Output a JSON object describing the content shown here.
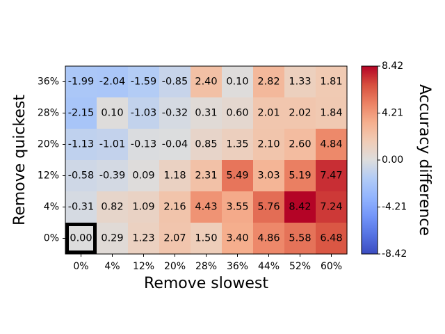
{
  "chart_data": {
    "type": "heatmap",
    "title": "",
    "xlabel": "Remove slowest",
    "ylabel": "Remove quickest",
    "colorbar_label": "Accuracy difference",
    "x_categories": [
      "0%",
      "4%",
      "12%",
      "20%",
      "28%",
      "36%",
      "44%",
      "52%",
      "60%"
    ],
    "y_categories": [
      "36%",
      "28%",
      "20%",
      "12%",
      "4%",
      "0%"
    ],
    "values": [
      [
        -1.99,
        -2.04,
        -1.59,
        -0.85,
        2.4,
        0.1,
        2.82,
        1.33,
        1.81
      ],
      [
        -2.15,
        0.1,
        -1.03,
        -0.32,
        0.31,
        0.6,
        2.01,
        2.02,
        1.84
      ],
      [
        -1.13,
        -1.01,
        -0.13,
        -0.04,
        0.85,
        1.35,
        2.1,
        2.6,
        4.84
      ],
      [
        -0.58,
        -0.39,
        0.09,
        1.18,
        2.31,
        5.49,
        3.03,
        5.19,
        7.47
      ],
      [
        -0.31,
        0.82,
        1.09,
        2.16,
        4.43,
        3.55,
        5.76,
        8.42,
        7.24
      ],
      [
        0.0,
        0.29,
        1.23,
        2.07,
        1.5,
        3.4,
        4.86,
        5.58,
        6.48
      ]
    ],
    "value_labels": [
      [
        "-1.99",
        "-2.04",
        "-1.59",
        "-0.85",
        "2.40",
        "0.10",
        "2.82",
        "1.33",
        "1.81"
      ],
      [
        "-2.15",
        "0.10",
        "-1.03",
        "-0.32",
        "0.31",
        "0.60",
        "2.01",
        "2.02",
        "1.84"
      ],
      [
        "-1.13",
        "-1.01",
        "-0.13",
        "-0.04",
        "0.85",
        "1.35",
        "2.10",
        "2.60",
        "4.84"
      ],
      [
        "-0.58",
        "-0.39",
        "0.09",
        "1.18",
        "2.31",
        "5.49",
        "3.03",
        "5.19",
        "7.47"
      ],
      [
        "-0.31",
        "0.82",
        "1.09",
        "2.16",
        "4.43",
        "3.55",
        "5.76",
        "8.42",
        "7.24"
      ],
      [
        "0.00",
        "0.29",
        "1.23",
        "2.07",
        "1.50",
        "3.40",
        "4.86",
        "5.58",
        "6.48"
      ]
    ],
    "color_range": [
      -8.42,
      8.42
    ],
    "colormap": "coolwarm",
    "colorbar_ticks": [
      8.42,
      4.21,
      0.0,
      -4.21,
      -8.42
    ],
    "colorbar_tick_labels": [
      "8.42",
      "4.21",
      "0.00",
      "-4.21",
      "-8.42"
    ],
    "highlighted_cell": {
      "row_label": "0%",
      "col_label": "0%"
    },
    "colors": {
      "highlight_border": "#000000",
      "text": "#000000"
    }
  }
}
